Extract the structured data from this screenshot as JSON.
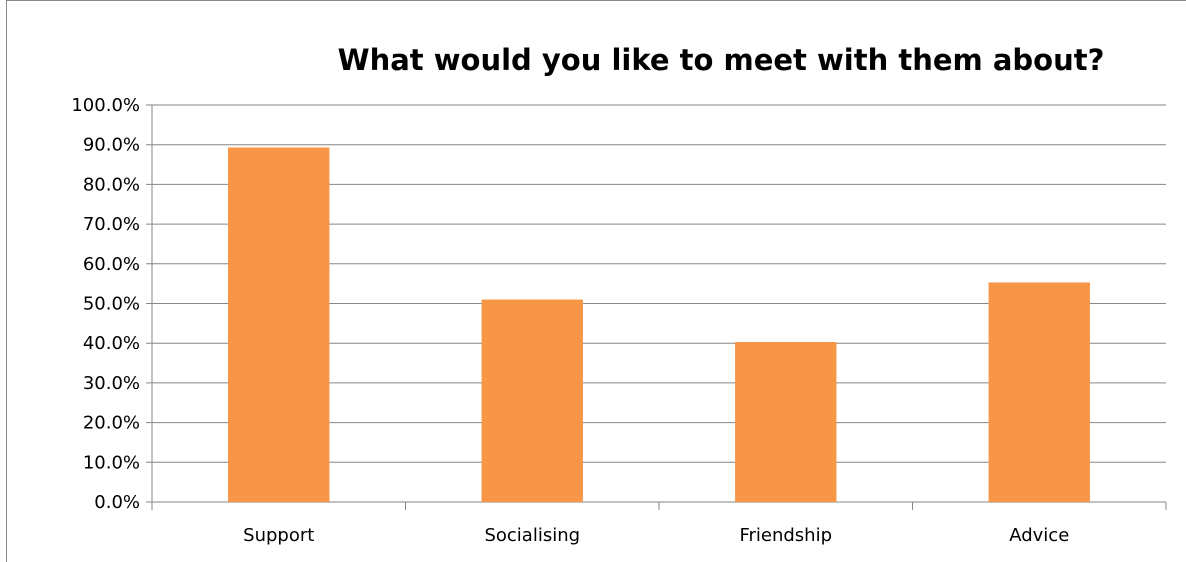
{
  "chart_data": {
    "type": "bar",
    "title": "What would you like to meet with them about?",
    "categories": [
      "Support",
      "Socialising",
      "Friendship",
      "Advice"
    ],
    "values": [
      89.3,
      51.0,
      40.3,
      55.3
    ],
    "y_ticks": [
      "0.0%",
      "10.0%",
      "20.0%",
      "30.0%",
      "40.0%",
      "50.0%",
      "60.0%",
      "70.0%",
      "80.0%",
      "90.0%",
      "100.0%"
    ],
    "ylim": [
      0,
      100
    ],
    "y_unit": "%",
    "grid": true,
    "legend": "none",
    "bar_color": "#F79646"
  }
}
